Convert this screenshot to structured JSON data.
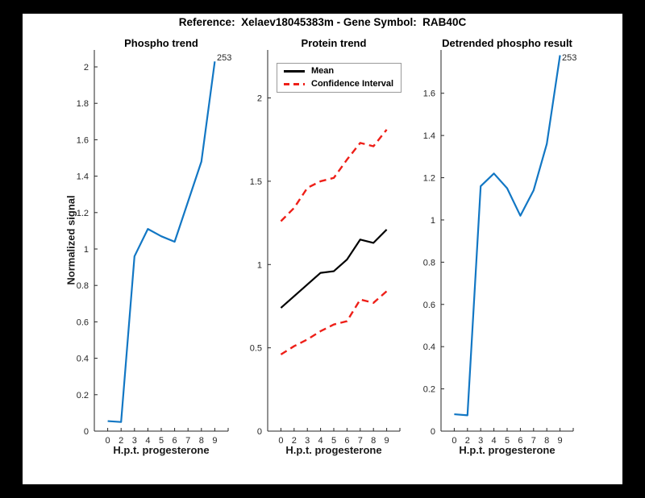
{
  "figure": {
    "title": "Reference:  Xelaev18045383m - Gene Symbol:  RAB40C",
    "background_color": "#000000",
    "figure_color": "#ffffff",
    "axis_color": "#262626"
  },
  "annotations": {
    "phospho_peak": "253",
    "detrended_peak": "253"
  },
  "chart_data": [
    {
      "type": "line",
      "title": "Phospho trend",
      "xlabel": "H.p.t. progesterone",
      "ylabel": "Normalized signal",
      "categories": [
        "0",
        "2",
        "3",
        "4",
        "5",
        "6",
        "7",
        "8",
        "9"
      ],
      "x_spacing": "equal",
      "ytick_labels": [
        "0",
        "0.2",
        "0.4",
        "0.6",
        "0.8",
        "1",
        "1.2",
        "1.4",
        "1.6",
        "1.8",
        "2"
      ],
      "ylim": [
        0,
        2.093
      ],
      "grid": false,
      "series": [
        {
          "name": "Phospho signal",
          "color": "#1277c4",
          "style": "solid",
          "width": 2.2,
          "values": [
            0.055,
            0.05,
            0.96,
            1.11,
            1.07,
            1.04,
            1.26,
            1.48,
            2.03
          ]
        }
      ],
      "annotation": "253"
    },
    {
      "type": "line",
      "title": "Protein trend",
      "xlabel": "H.p.t. progesterone",
      "ylabel": "",
      "categories": [
        "0",
        "2",
        "3",
        "4",
        "5",
        "6",
        "7",
        "8",
        "9"
      ],
      "x_spacing": "equal",
      "ytick_labels": [
        "0",
        "0.5",
        "1",
        "1.5",
        "2"
      ],
      "ylim": [
        0,
        2.288
      ],
      "grid": false,
      "legend": {
        "position": "top-left",
        "entries": [
          {
            "label": "Mean",
            "color": "#000000",
            "style": "solid"
          },
          {
            "label": "Confidence Interval",
            "color": "#ee1f18",
            "style": "dashed"
          }
        ]
      },
      "series": [
        {
          "name": "Mean",
          "color": "#000000",
          "style": "solid",
          "width": 2.2,
          "values": [
            0.74,
            0.81,
            0.88,
            0.95,
            0.96,
            1.03,
            1.15,
            1.13,
            1.21
          ]
        },
        {
          "name": "CI upper",
          "color": "#ee1f18",
          "style": "dashed",
          "width": 2.4,
          "values": [
            1.26,
            1.34,
            1.46,
            1.5,
            1.52,
            1.63,
            1.73,
            1.71,
            1.81
          ]
        },
        {
          "name": "CI lower",
          "color": "#ee1f18",
          "style": "dashed",
          "width": 2.4,
          "values": [
            0.46,
            0.51,
            0.55,
            0.6,
            0.64,
            0.66,
            0.79,
            0.77,
            0.84
          ]
        }
      ]
    },
    {
      "type": "line",
      "title": "Detrended phospho result",
      "xlabel": "H.p.t. progesterone",
      "ylabel": "",
      "categories": [
        "0",
        "2",
        "3",
        "4",
        "5",
        "6",
        "7",
        "8",
        "9"
      ],
      "x_spacing": "equal",
      "ytick_labels": [
        "0",
        "0.2",
        "0.4",
        "0.6",
        "0.8",
        "1",
        "1.2",
        "1.4",
        "1.6"
      ],
      "ylim": [
        0,
        1.805
      ],
      "grid": false,
      "series": [
        {
          "name": "Detrended phospho",
          "color": "#1277c4",
          "style": "solid",
          "width": 2.2,
          "values": [
            0.08,
            0.075,
            1.16,
            1.22,
            1.15,
            1.02,
            1.14,
            1.36,
            1.78
          ]
        }
      ],
      "annotation": "253"
    }
  ]
}
